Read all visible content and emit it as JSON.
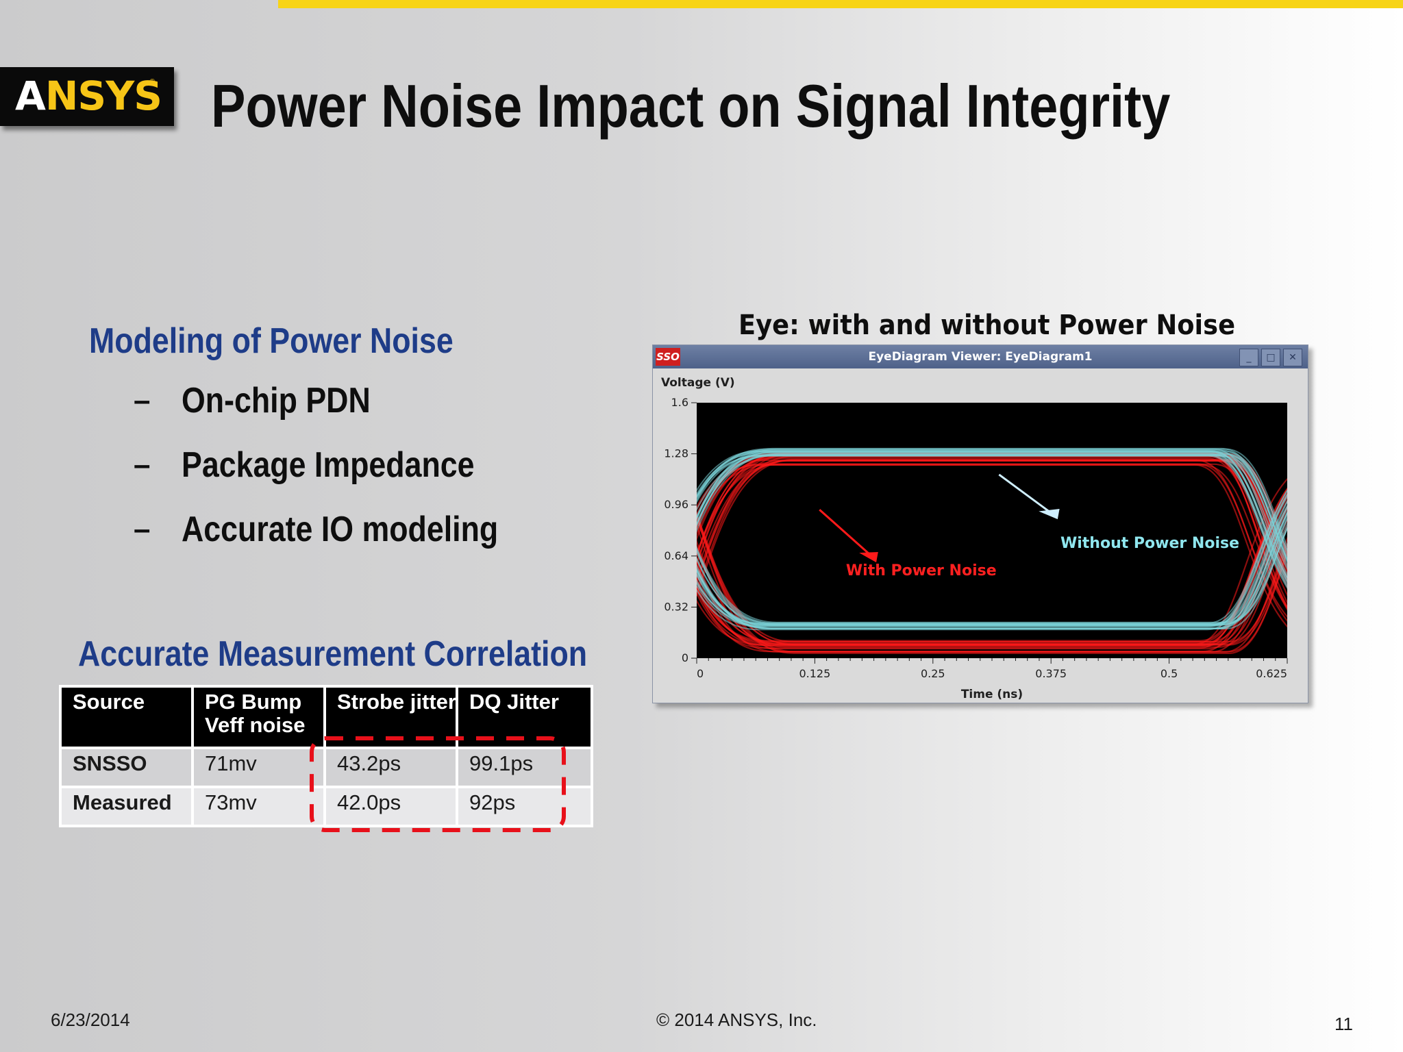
{
  "slide": {
    "title": "Power Noise Impact on Signal Integrity",
    "logo_text": "ANSYS",
    "section1": {
      "heading": "Modeling of Power Noise",
      "bullets": [
        "On-chip PDN",
        "Package Impedance",
        "Accurate IO modeling"
      ],
      "bullet_marker": "–"
    },
    "section2": {
      "heading": "Accurate Measurement Correlation",
      "table": {
        "headers": [
          [
            "Source"
          ],
          [
            "PG Bump",
            "Veff noise"
          ],
          [
            "Strobe jitter"
          ],
          [
            "DQ Jitter"
          ]
        ],
        "rows": [
          [
            "SNSSO",
            "71mv",
            "43.2ps",
            "99.1ps"
          ],
          [
            "Measured",
            "73mv",
            "42.0ps",
            "92ps"
          ]
        ]
      },
      "highlight_color": "#e8101a"
    },
    "figure": {
      "caption": "Eye: with and without Power Noise",
      "window_title": "EyeDiagram Viewer: EyeDiagram1",
      "app_icon_label": "SSO",
      "window_buttons": [
        "_",
        "□",
        "✕"
      ]
    },
    "footer": {
      "date": "6/23/2014",
      "copyright": "© 2014 ANSYS, Inc.",
      "page": "11"
    },
    "colors": {
      "title_bar_accent": "#f7d417",
      "heading_blue": "#1e3c88",
      "with_noise": "#ff1a1a",
      "without_noise": "#7cd3d8"
    }
  },
  "chart_data": {
    "type": "line",
    "title": "",
    "xlabel": "Time (ns)",
    "ylabel": "Voltage (V)",
    "xlim": [
      0,
      0.625
    ],
    "ylim": [
      0,
      1.6
    ],
    "xticks": [
      0,
      0.125,
      0.25,
      0.375,
      0.5,
      0.625
    ],
    "xtick_labels": [
      "0",
      "0.125",
      "0.25",
      "0.375",
      "0.5",
      "0.625"
    ],
    "yticks": [
      0,
      0.32,
      0.64,
      0.96,
      1.28,
      1.6
    ],
    "ytick_labels": [
      "0",
      "0.32",
      "0.64",
      "0.96",
      "1.28",
      "1.6"
    ],
    "background": "#000000",
    "grid": false,
    "series": [
      {
        "name": "With Power Noise",
        "color": "#ff1a1a",
        "annotation": "With Power Noise",
        "high_level": 1.25,
        "low_level": 0.07,
        "crossing_times": [
          0.01,
          0.62
        ],
        "crossing_voltage": 0.72,
        "jitter_ns": 0.0432
      },
      {
        "name": "Without Power Noise",
        "color": "#7cd3d8",
        "annotation": "Without Power Noise",
        "high_level": 1.29,
        "low_level": 0.2,
        "crossing_times": [
          0.0,
          0.625
        ],
        "crossing_voltage": 0.74,
        "jitter_ns": 0.02
      }
    ]
  }
}
